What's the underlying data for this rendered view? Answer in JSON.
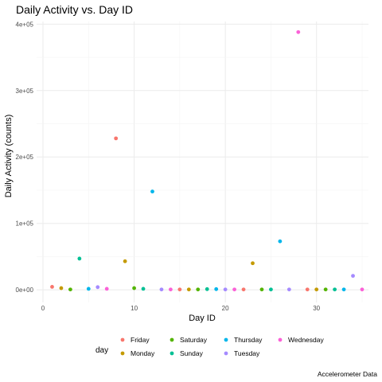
{
  "chart_data": {
    "type": "scatter",
    "title": "Daily Activity vs. Day ID",
    "xlabel": "Day ID",
    "ylabel": "Daily Activity (counts)",
    "caption": "Accelerometer Data",
    "xlim": [
      -0.7,
      35.7
    ],
    "ylim": [
      -19000,
      404000
    ],
    "x_ticks": [
      0,
      10,
      20,
      30
    ],
    "x_tick_labels": [
      "0",
      "10",
      "20",
      "30"
    ],
    "y_ticks": [
      0,
      100000,
      200000,
      300000,
      400000
    ],
    "y_tick_labels": [
      "0e+00",
      "1e+05",
      "2e+05",
      "3e+05",
      "4e+05"
    ],
    "grid": true,
    "legend": {
      "title": "day",
      "position": "bottom",
      "entries": [
        "Friday",
        "Monday",
        "Saturday",
        "Sunday",
        "Thursday",
        "Tuesday",
        "Wednesday"
      ]
    },
    "colors": {
      "Friday": "#F8766D",
      "Monday": "#C49A00",
      "Saturday": "#53B400",
      "Sunday": "#00C094",
      "Thursday": "#00B6EB",
      "Tuesday": "#A58AFF",
      "Wednesday": "#FB61D7"
    },
    "points": [
      {
        "x": 1,
        "y": 4500,
        "day": "Friday"
      },
      {
        "x": 2,
        "y": 2500,
        "day": "Monday"
      },
      {
        "x": 3,
        "y": 500,
        "day": "Saturday"
      },
      {
        "x": 4,
        "y": 47000,
        "day": "Sunday"
      },
      {
        "x": 5,
        "y": 1500,
        "day": "Thursday"
      },
      {
        "x": 6,
        "y": 4000,
        "day": "Tuesday"
      },
      {
        "x": 7,
        "y": 1500,
        "day": "Wednesday"
      },
      {
        "x": 8,
        "y": 228000,
        "day": "Friday"
      },
      {
        "x": 9,
        "y": 43000,
        "day": "Monday"
      },
      {
        "x": 10,
        "y": 2500,
        "day": "Saturday"
      },
      {
        "x": 11,
        "y": 1500,
        "day": "Sunday"
      },
      {
        "x": 12,
        "y": 148000,
        "day": "Thursday"
      },
      {
        "x": 13,
        "y": 500,
        "day": "Tuesday"
      },
      {
        "x": 14,
        "y": 500,
        "day": "Wednesday"
      },
      {
        "x": 15,
        "y": 500,
        "day": "Friday"
      },
      {
        "x": 16,
        "y": 500,
        "day": "Monday"
      },
      {
        "x": 17,
        "y": 500,
        "day": "Saturday"
      },
      {
        "x": 18,
        "y": 1000,
        "day": "Sunday"
      },
      {
        "x": 19,
        "y": 1000,
        "day": "Thursday"
      },
      {
        "x": 20,
        "y": 500,
        "day": "Tuesday"
      },
      {
        "x": 21,
        "y": 500,
        "day": "Wednesday"
      },
      {
        "x": 22,
        "y": 500,
        "day": "Friday"
      },
      {
        "x": 23,
        "y": 40000,
        "day": "Monday"
      },
      {
        "x": 24,
        "y": 500,
        "day": "Saturday"
      },
      {
        "x": 25,
        "y": 500,
        "day": "Sunday"
      },
      {
        "x": 26,
        "y": 73000,
        "day": "Thursday"
      },
      {
        "x": 27,
        "y": 500,
        "day": "Tuesday"
      },
      {
        "x": 28,
        "y": 388000,
        "day": "Wednesday"
      },
      {
        "x": 29,
        "y": 500,
        "day": "Friday"
      },
      {
        "x": 30,
        "y": 500,
        "day": "Monday"
      },
      {
        "x": 31,
        "y": 500,
        "day": "Saturday"
      },
      {
        "x": 32,
        "y": 500,
        "day": "Sunday"
      },
      {
        "x": 33,
        "y": 500,
        "day": "Thursday"
      },
      {
        "x": 34,
        "y": 21000,
        "day": "Tuesday"
      },
      {
        "x": 35,
        "y": 500,
        "day": "Wednesday"
      }
    ]
  }
}
